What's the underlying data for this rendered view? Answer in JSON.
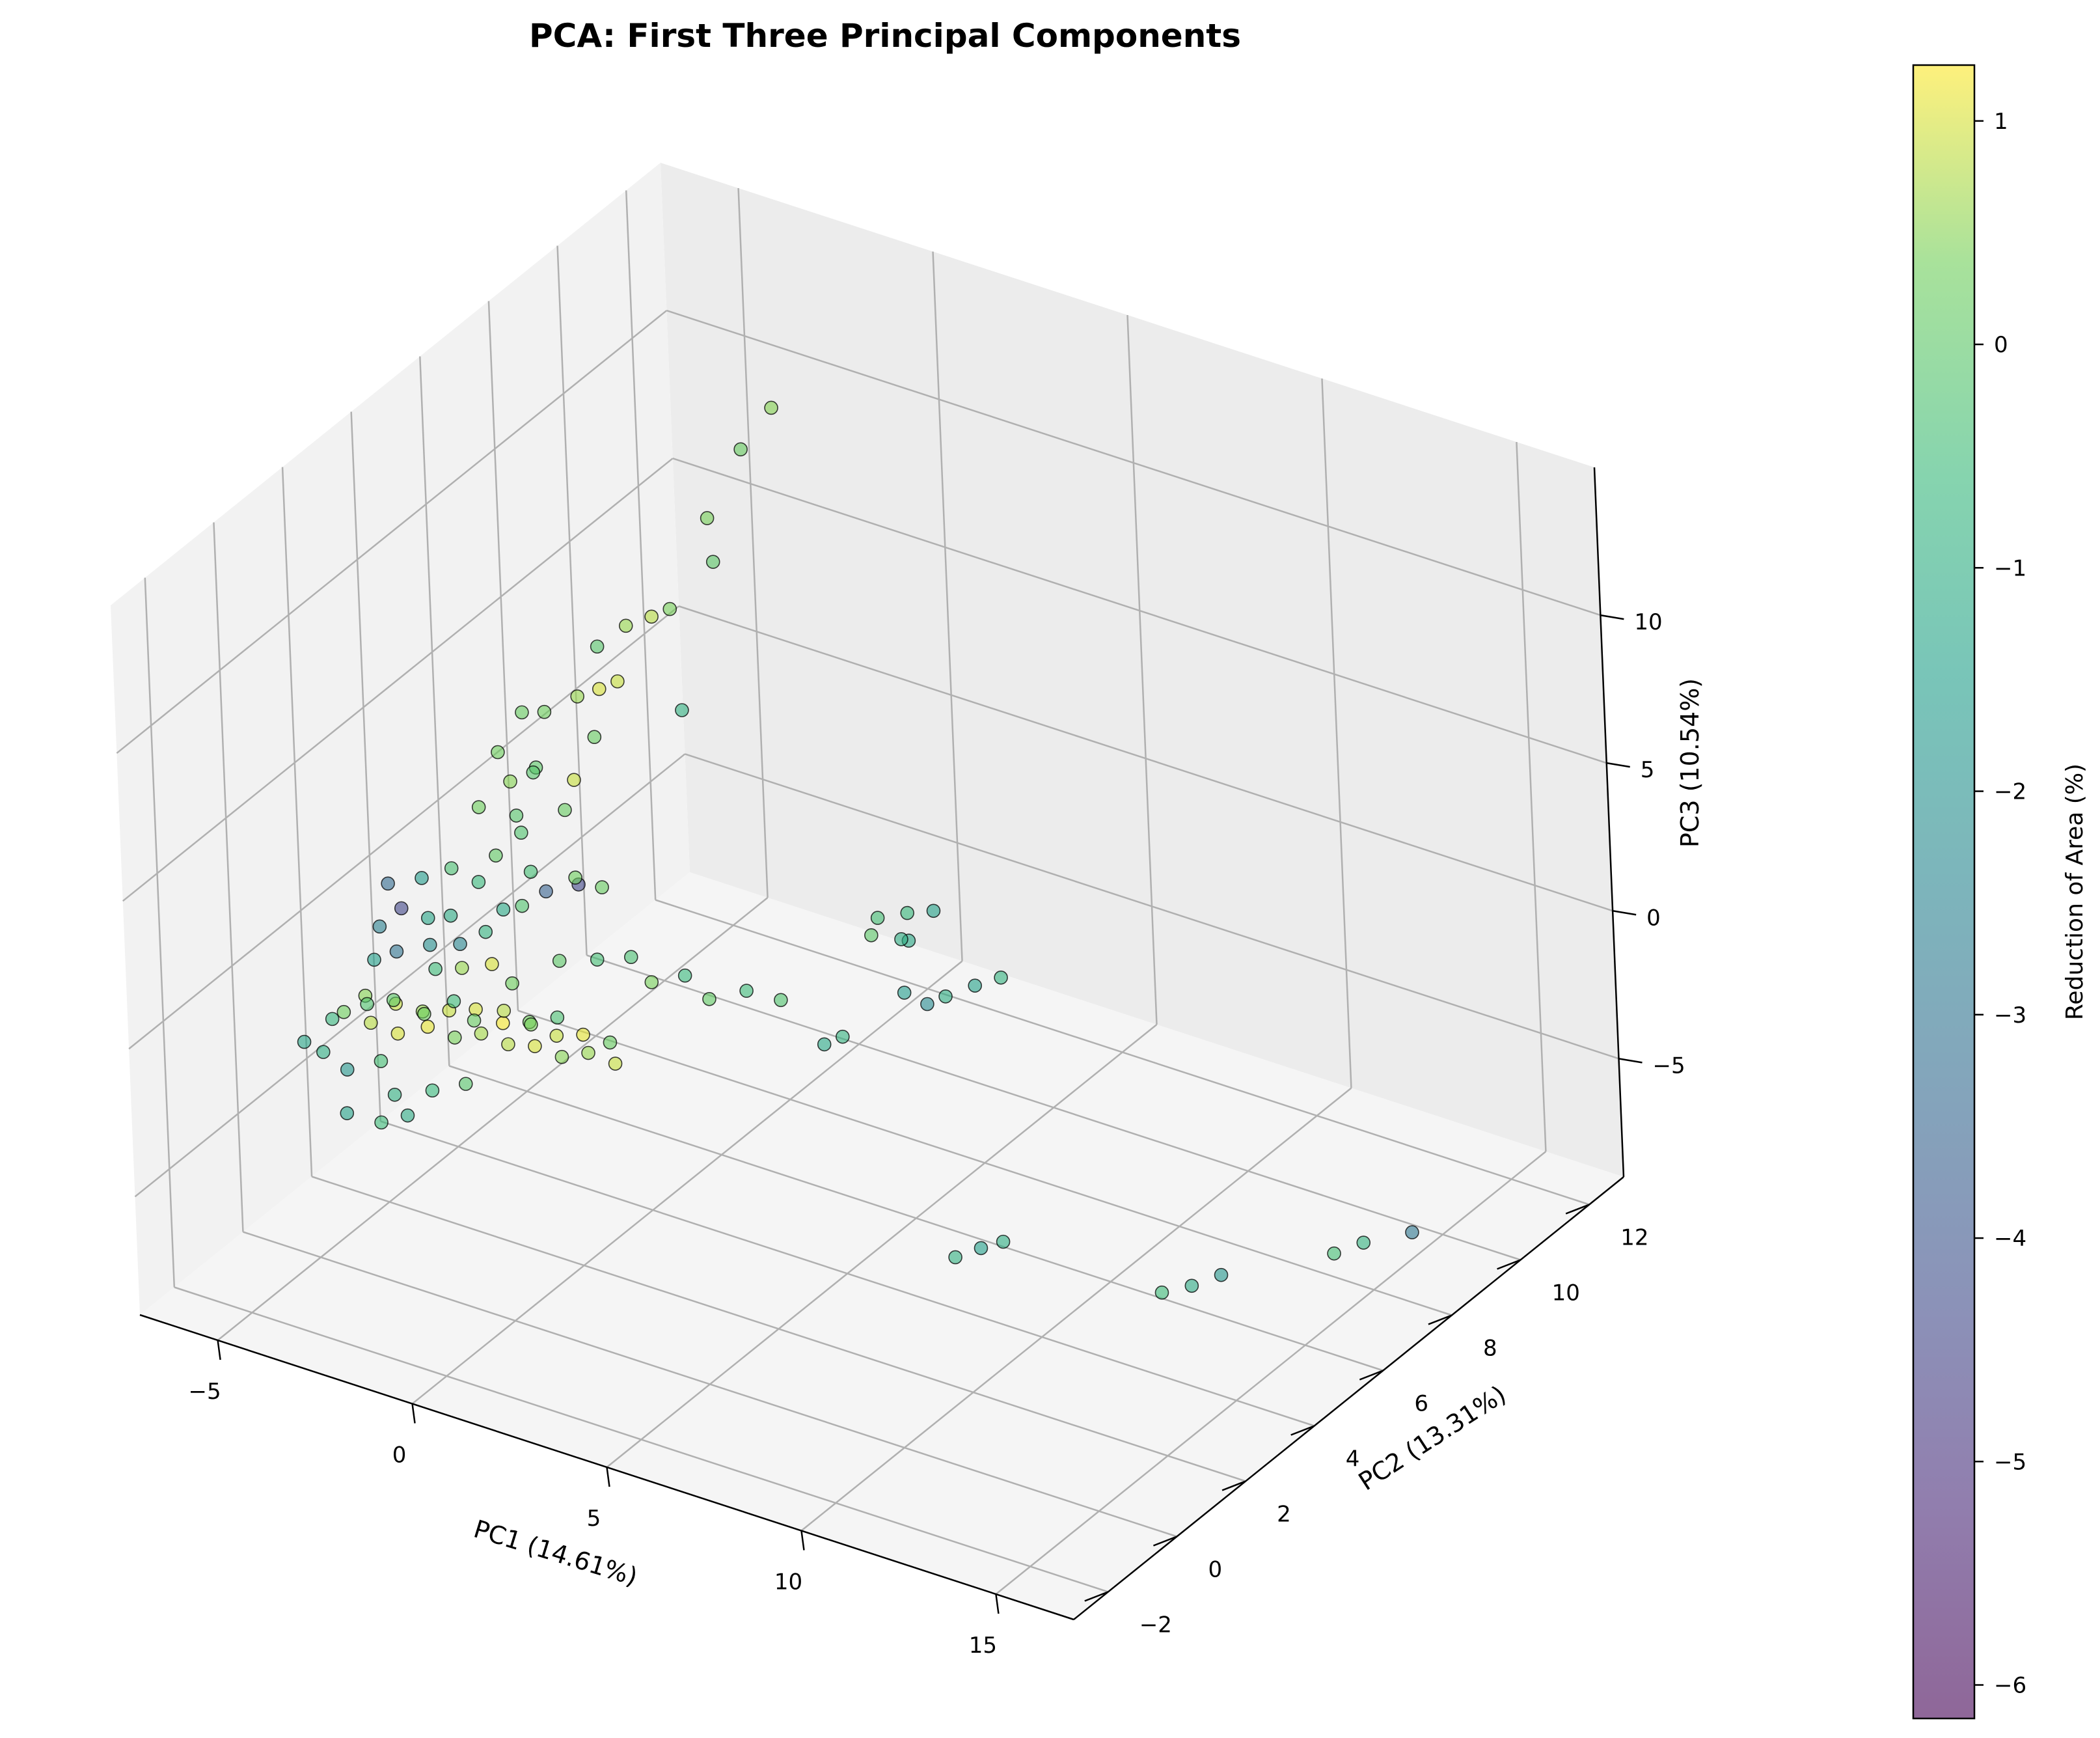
{
  "chart_data": {
    "type": "scatter",
    "title": "PCA: First Three Principal Components",
    "xlabel": "PC1 (14.61%)",
    "ylabel": "PC2 (13.31%)",
    "zlabel": "PC3 (10.54%)",
    "xlim": [
      -7,
      17
    ],
    "ylim": [
      -3,
      13
    ],
    "zlim": [
      -9,
      15
    ],
    "x_ticks": [
      -5,
      0,
      5,
      10,
      15
    ],
    "y_ticks": [
      -2,
      0,
      2,
      4,
      6,
      8,
      10,
      12
    ],
    "z_ticks": [
      -5,
      0,
      5,
      10
    ],
    "x_tick_labels": [
      "−5",
      "0",
      "5",
      "10",
      "15"
    ],
    "y_tick_labels": [
      "−2",
      "0",
      "2",
      "4",
      "6",
      "8",
      "10",
      "12"
    ],
    "z_tick_labels": [
      "−5",
      "0",
      "5",
      "10"
    ],
    "grid": true,
    "colorbar": {
      "label": "Reduction of Area (%)",
      "min": -6.15,
      "max": 1.25,
      "ticks": [
        1,
        0,
        -1,
        -2,
        -3,
        -4,
        -5,
        -6
      ],
      "tick_labels": [
        "1",
        "0",
        "−1",
        "−2",
        "−3",
        "−4",
        "−5",
        "−6"
      ],
      "colormap": "viridis",
      "alpha": 0.6
    },
    "marker": {
      "edgecolor": "#000000",
      "alpha": 0.6
    },
    "points": [
      {
        "x": -4.6,
        "y": 0.5,
        "z": -1.0,
        "c": 0.3
      },
      {
        "x": -4.3,
        "y": 0.8,
        "z": -0.6,
        "c": 0.5
      },
      {
        "x": -4.0,
        "y": 0.6,
        "z": -1.2,
        "c": 0.8
      },
      {
        "x": -3.7,
        "y": 1.0,
        "z": -0.8,
        "c": 0.9
      },
      {
        "x": -3.4,
        "y": 0.7,
        "z": -1.4,
        "c": 1.0
      },
      {
        "x": -3.1,
        "y": 1.1,
        "z": -0.9,
        "c": 0.6
      },
      {
        "x": -2.8,
        "y": 0.9,
        "z": -1.1,
        "c": 1.1
      },
      {
        "x": -2.5,
        "y": 1.2,
        "z": -0.7,
        "c": 0.9
      },
      {
        "x": -2.2,
        "y": 1.0,
        "z": -1.3,
        "c": 0.4
      },
      {
        "x": -1.9,
        "y": 1.3,
        "z": -0.5,
        "c": 1.0
      },
      {
        "x": -1.6,
        "y": 1.1,
        "z": -1.0,
        "c": 0.7
      },
      {
        "x": -1.3,
        "y": 1.4,
        "z": -0.8,
        "c": 1.2
      },
      {
        "x": -1.0,
        "y": 1.2,
        "z": -1.2,
        "c": 0.8
      },
      {
        "x": -0.7,
        "y": 1.5,
        "z": -0.6,
        "c": 0.3
      },
      {
        "x": -0.4,
        "y": 1.3,
        "z": -1.1,
        "c": 1.0
      },
      {
        "x": -0.1,
        "y": 1.6,
        "z": -0.9,
        "c": 0.9
      },
      {
        "x": 0.2,
        "y": 1.4,
        "z": -1.3,
        "c": 0.5
      },
      {
        "x": 0.5,
        "y": 1.7,
        "z": -0.7,
        "c": 1.1
      },
      {
        "x": 0.8,
        "y": 1.5,
        "z": -1.0,
        "c": 0.6
      },
      {
        "x": 1.1,
        "y": 1.8,
        "z": -0.8,
        "c": 0.2
      },
      {
        "x": 1.4,
        "y": 1.6,
        "z": -1.2,
        "c": 0.9
      },
      {
        "x": -3.8,
        "y": 0.3,
        "z": -0.2,
        "c": -0.2
      },
      {
        "x": -3.2,
        "y": 0.4,
        "z": 0.1,
        "c": 0.0
      },
      {
        "x": -2.6,
        "y": 0.6,
        "z": -0.3,
        "c": 0.3
      },
      {
        "x": -2.0,
        "y": 0.8,
        "z": 0.2,
        "c": -0.5
      },
      {
        "x": -1.4,
        "y": 0.7,
        "z": -0.1,
        "c": 0.2
      },
      {
        "x": -0.8,
        "y": 0.9,
        "z": 0.3,
        "c": 0.8
      },
      {
        "x": -0.2,
        "y": 1.0,
        "z": 0.0,
        "c": 0.4
      },
      {
        "x": 0.4,
        "y": 1.1,
        "z": 0.4,
        "c": -0.3
      },
      {
        "x": -4.9,
        "y": 0.2,
        "z": -2.2,
        "c": -1.0
      },
      {
        "x": -4.2,
        "y": 0.1,
        "z": -2.4,
        "c": -1.8
      },
      {
        "x": -3.5,
        "y": 0.3,
        "z": -2.0,
        "c": -0.4
      },
      {
        "x": -2.9,
        "y": 0.0,
        "z": -2.6,
        "c": -0.9
      },
      {
        "x": -2.1,
        "y": 0.2,
        "z": -2.3,
        "c": -0.6
      },
      {
        "x": -1.5,
        "y": 0.5,
        "z": -2.1,
        "c": -0.1
      },
      {
        "x": -4.5,
        "y": 1.5,
        "z": 1.0,
        "c": -2.6
      },
      {
        "x": -4.1,
        "y": 1.7,
        "z": 1.6,
        "c": -4.4
      },
      {
        "x": -3.9,
        "y": 1.3,
        "z": 0.6,
        "c": -3.0
      },
      {
        "x": -3.6,
        "y": 1.9,
        "z": 1.3,
        "c": -1.3
      },
      {
        "x": -3.3,
        "y": 1.6,
        "z": 0.8,
        "c": -2.1
      },
      {
        "x": -4.7,
        "y": 2.0,
        "z": 1.9,
        "c": -3.3
      },
      {
        "x": -4.0,
        "y": 2.2,
        "z": 2.2,
        "c": -1.6
      },
      {
        "x": -3.1,
        "y": 2.0,
        "z": 1.5,
        "c": -1.1
      },
      {
        "x": -2.7,
        "y": 1.8,
        "z": 0.9,
        "c": -2.4
      },
      {
        "x": -2.3,
        "y": 2.1,
        "z": 1.2,
        "c": -0.8
      },
      {
        "x": -4.4,
        "y": 1.2,
        "z": 0.2,
        "c": -1.5
      },
      {
        "x": -3.0,
        "y": 1.4,
        "z": 0.3,
        "c": -0.5
      },
      {
        "x": -2.4,
        "y": 1.5,
        "z": 0.5,
        "c": 0.6
      },
      {
        "x": -1.8,
        "y": 1.7,
        "z": 0.7,
        "c": 1.0
      },
      {
        "x": -1.2,
        "y": 1.6,
        "z": 0.4,
        "c": 0.3
      },
      {
        "x": -3.4,
        "y": 2.4,
        "z": 2.6,
        "c": -0.3
      },
      {
        "x": -2.8,
        "y": 2.5,
        "z": 2.3,
        "c": -0.6
      },
      {
        "x": -2.0,
        "y": 2.3,
        "z": 1.9,
        "c": -1.2
      },
      {
        "x": -1.6,
        "y": 2.4,
        "z": 2.1,
        "c": -0.2
      },
      {
        "x": -3.7,
        "y": -0.5,
        "z": -3.1,
        "c": -1.4
      },
      {
        "x": -3.0,
        "y": -0.3,
        "z": -3.3,
        "c": -0.5
      },
      {
        "x": -2.4,
        "y": -0.2,
        "z": -2.9,
        "c": -1.1
      },
      {
        "x": -5.2,
        "y": 0.0,
        "z": -1.8,
        "c": -1.3
      },
      {
        "x": -5.0,
        "y": 0.6,
        "z": -1.5,
        "c": -0.7
      },
      {
        "x": -0.5,
        "y": 2.2,
        "z": 0.9,
        "c": 0.0
      },
      {
        "x": 0.3,
        "y": 2.4,
        "z": 1.1,
        "c": -0.4
      },
      {
        "x": 1.0,
        "y": 2.6,
        "z": 1.3,
        "c": -0.3
      },
      {
        "x": 1.6,
        "y": 2.5,
        "z": 0.8,
        "c": 0.4
      },
      {
        "x": 2.2,
        "y": 2.8,
        "z": 1.0,
        "c": -0.6
      },
      {
        "x": 2.9,
        "y": 2.7,
        "z": 0.6,
        "c": 0.1
      },
      {
        "x": 3.6,
        "y": 3.0,
        "z": 0.9,
        "c": -0.5
      },
      {
        "x": 4.3,
        "y": 3.2,
        "z": 0.7,
        "c": -0.2
      },
      {
        "x": 5.2,
        "y": 3.4,
        "z": -0.6,
        "c": -1.2
      },
      {
        "x": 5.5,
        "y": 3.6,
        "z": -0.4,
        "c": -0.8
      },
      {
        "x": 6.6,
        "y": 4.2,
        "z": 1.0,
        "c": -1.6
      },
      {
        "x": 7.0,
        "y": 4.4,
        "z": 0.6,
        "c": -2.2
      },
      {
        "x": 7.3,
        "y": 4.6,
        "z": 0.8,
        "c": -1.0
      },
      {
        "x": 7.8,
        "y": 4.9,
        "z": 1.1,
        "c": -1.4
      },
      {
        "x": 8.3,
        "y": 5.1,
        "z": 1.4,
        "c": -0.8
      },
      {
        "x": 5.8,
        "y": 4.4,
        "z": 3.0,
        "c": -0.4
      },
      {
        "x": 5.8,
        "y": 4.2,
        "z": 2.6,
        "c": 0.0
      },
      {
        "x": 6.3,
        "y": 4.7,
        "z": 3.1,
        "c": -0.6
      },
      {
        "x": 6.3,
        "y": 4.5,
        "z": 2.4,
        "c": -1.0
      },
      {
        "x": 6.8,
        "y": 4.9,
        "z": 3.2,
        "c": -1.4
      },
      {
        "x": 6.4,
        "y": 4.6,
        "z": 2.3,
        "c": -1.2
      },
      {
        "x": 8.2,
        "y": 3.6,
        "z": -6.7,
        "c": -0.9
      },
      {
        "x": 8.6,
        "y": 3.9,
        "z": -6.5,
        "c": -1.5
      },
      {
        "x": 9.0,
        "y": 4.1,
        "z": -6.3,
        "c": -1.0
      },
      {
        "x": 11.6,
        "y": 5.7,
        "z": -8.4,
        "c": -0.5
      },
      {
        "x": 12.2,
        "y": 5.9,
        "z": -8.1,
        "c": -1.1
      },
      {
        "x": 12.7,
        "y": 6.2,
        "z": -7.8,
        "c": -1.8
      },
      {
        "x": 14.0,
        "y": 8.0,
        "z": -8.2,
        "c": -0.4
      },
      {
        "x": 14.5,
        "y": 8.3,
        "z": -7.9,
        "c": -0.8
      },
      {
        "x": 15.5,
        "y": 8.6,
        "z": -7.4,
        "c": -2.9
      },
      {
        "x": -1.7,
        "y": 3.2,
        "z": 1.8,
        "c": -3.6
      },
      {
        "x": -1.2,
        "y": 3.5,
        "z": 2.2,
        "c": 0.3
      },
      {
        "x": -1.4,
        "y": 3.8,
        "z": 1.6,
        "c": -4.4
      },
      {
        "x": -0.7,
        "y": 3.7,
        "z": 1.9,
        "c": 0.2
      },
      {
        "x": -2.1,
        "y": 3.0,
        "z": 3.8,
        "c": -0.2
      },
      {
        "x": -1.8,
        "y": 2.9,
        "z": 2.7,
        "c": -0.4
      },
      {
        "x": -2.6,
        "y": 2.8,
        "z": 3.0,
        "c": 0.1
      },
      {
        "x": -2.3,
        "y": 3.1,
        "z": 4.2,
        "c": -0.1
      },
      {
        "x": -2.9,
        "y": 2.7,
        "z": 4.6,
        "c": 0.3
      },
      {
        "x": -2.7,
        "y": 3.4,
        "z": 4.9,
        "c": 0.5
      },
      {
        "x": -2.2,
        "y": 3.6,
        "z": 5.4,
        "c": 0.0
      },
      {
        "x": -1.5,
        "y": 3.9,
        "z": 5.0,
        "c": 0.9
      },
      {
        "x": -1.2,
        "y": 4.2,
        "z": 6.3,
        "c": 0.2
      },
      {
        "x": -2.6,
        "y": 3.7,
        "z": 7.0,
        "c": 0.2
      },
      {
        "x": -2.2,
        "y": 3.9,
        "z": 7.0,
        "c": 0.3
      },
      {
        "x": -1.6,
        "y": 4.2,
        "z": 7.5,
        "c": 0.6
      },
      {
        "x": -1.3,
        "y": 4.5,
        "z": 7.6,
        "c": 1.0
      },
      {
        "x": -1.0,
        "y": 4.7,
        "z": 7.8,
        "c": 0.9
      },
      {
        "x": -1.4,
        "y": 4.6,
        "z": 8.9,
        "c": -0.1
      },
      {
        "x": -1.0,
        "y": 5.0,
        "z": 9.4,
        "c": 0.6
      },
      {
        "x": -0.6,
        "y": 5.3,
        "z": 9.6,
        "c": 0.8
      },
      {
        "x": -0.3,
        "y": 5.5,
        "z": 9.8,
        "c": 0.4
      },
      {
        "x": 0.0,
        "y": 5.4,
        "z": 6.6,
        "c": -0.9
      },
      {
        "x": 0.6,
        "y": 5.8,
        "z": 11.5,
        "c": 0.0
      },
      {
        "x": 0.7,
        "y": 6.6,
        "z": 14.6,
        "c": 0.2
      },
      {
        "x": 0.8,
        "y": 7.4,
        "z": 15.3,
        "c": 0.5
      },
      {
        "x": 0.4,
        "y": 5.9,
        "z": 12.8,
        "c": 0.4
      },
      {
        "x": -2.9,
        "y": 3.3,
        "z": 5.9,
        "c": 0.3
      },
      {
        "x": -2.0,
        "y": 3.3,
        "z": 5.6,
        "c": -0.1
      },
      {
        "x": -1.4,
        "y": 3.5,
        "z": 4.4,
        "c": 0.2
      }
    ]
  }
}
